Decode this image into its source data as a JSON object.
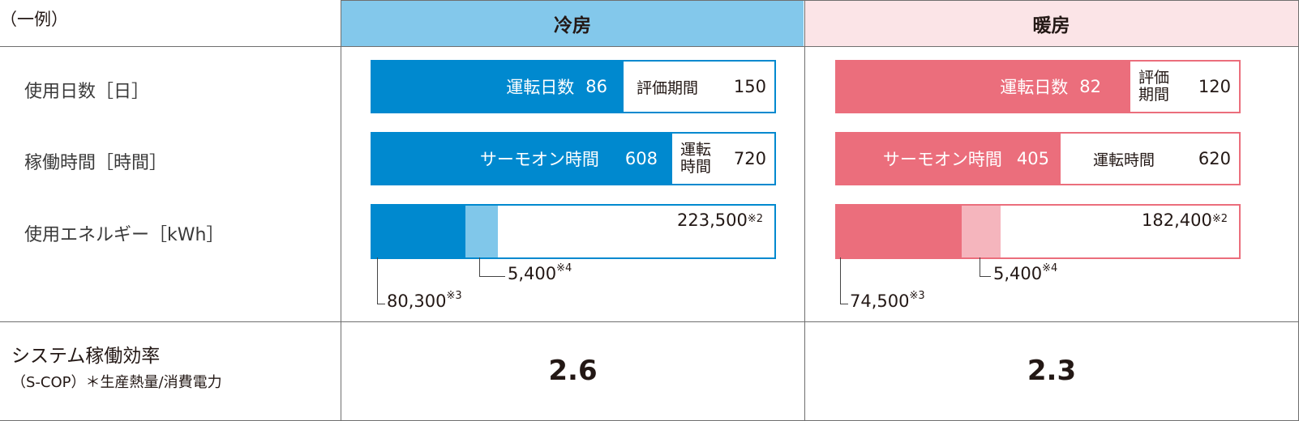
{
  "note": "（一例）",
  "headers": {
    "cooling": "冷房",
    "heating": "暖房"
  },
  "colors": {
    "cooling_header": "#83c8eb",
    "heating_header": "#fbe4e7",
    "cooling_main": "#0089cf",
    "cooling_light": "#80c7ea",
    "heating_main": "#eb6e7c",
    "heating_light": "#f5b5bd"
  },
  "rows": {
    "days": "使用日数［日］",
    "hours": "稼働時間［時間］",
    "energy": "使用エネルギー［kWh］",
    "efficiency_line1": "システム稼働効率",
    "efficiency_line2": "（S-COP）＊生産熱量/消費電力"
  },
  "chart_data": [
    {
      "type": "bar",
      "mode": "cooling",
      "days": {
        "label": "運転日数",
        "value": "86",
        "total_label": "評価期間",
        "total_value": "150"
      },
      "hours": {
        "label": "サーモオン時間",
        "value": "608",
        "total_label_1": "運転",
        "total_label_2": "時間",
        "total_value": "720"
      },
      "energy": {
        "total": "223,500",
        "total_note": "※2",
        "main": "80,300",
        "main_note": "※3",
        "sub": "5,400",
        "sub_note": "※4"
      },
      "efficiency": "2.6"
    },
    {
      "type": "bar",
      "mode": "heating",
      "days": {
        "label": "運転日数",
        "value": "82",
        "total_label_1": "評価",
        "total_label_2": "期間",
        "total_value": "120"
      },
      "hours": {
        "label": "サーモオン時間",
        "value": "405",
        "total_label": "運転時間",
        "total_value": "620"
      },
      "energy": {
        "total": "182,400",
        "total_note": "※2",
        "main": "74,500",
        "main_note": "※3",
        "sub": "5,400",
        "sub_note": "※4"
      },
      "efficiency": "2.3"
    }
  ]
}
